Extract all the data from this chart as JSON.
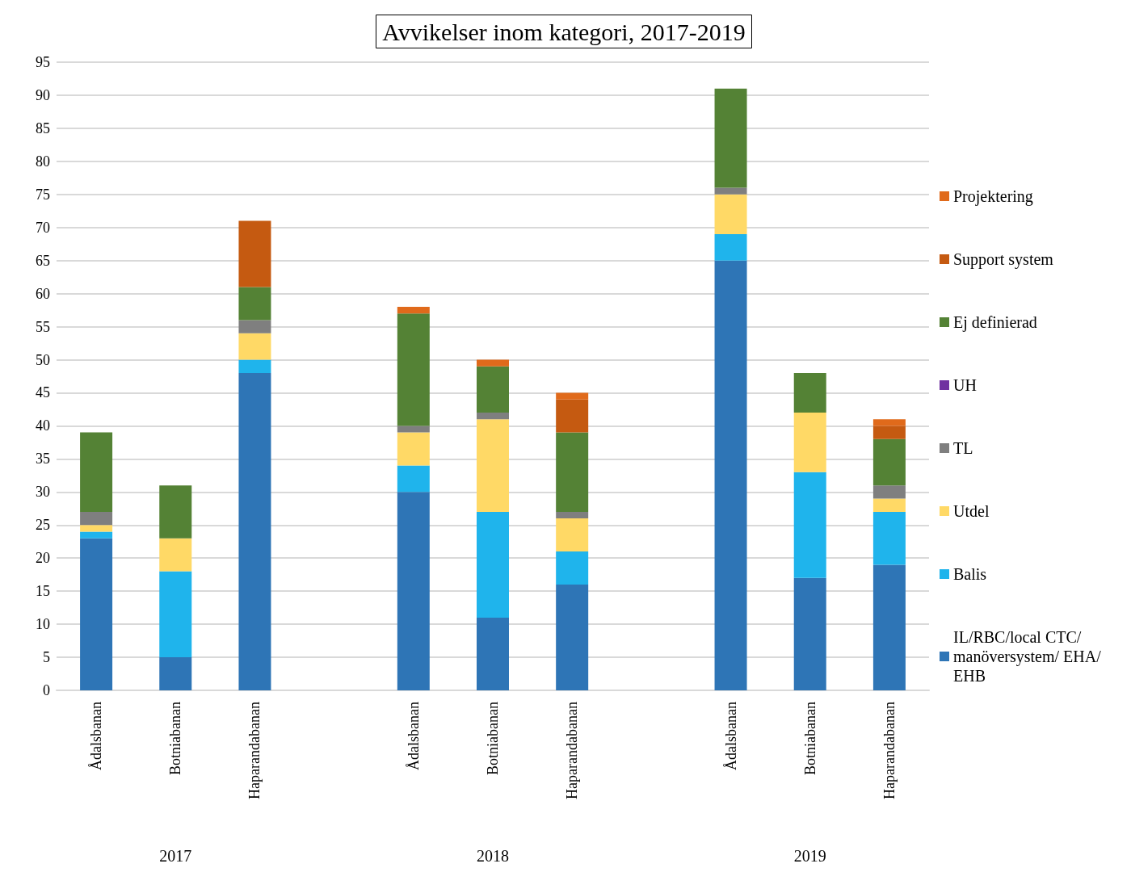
{
  "chart_data": {
    "type": "bar",
    "title": "Avvikelser inom kategori, 2017-2019",
    "stacked": true,
    "grid": "y",
    "legend": "right",
    "categories": [
      "Ådalsbanan",
      "Botniabanan",
      "Haparandabanan",
      null,
      "Ådalsbanan",
      "Botniabanan",
      "Haparandabanan",
      null,
      "Ådalsbanan",
      "Botniabanan",
      "Haparandabanan"
    ],
    "ylim": [
      0,
      95
    ],
    "yticks": [
      0,
      5,
      10,
      15,
      20,
      25,
      30,
      35,
      40,
      45,
      50,
      55,
      60,
      65,
      70,
      75,
      80,
      85,
      90,
      95
    ],
    "annotations": [
      "2017",
      "2018",
      "2019"
    ],
    "series": [
      {
        "name": "IL/RBC/local CTC/manöversystem/ EHA/EHB",
        "color": "#2e75b6",
        "values": [
          23,
          5,
          48,
          null,
          30,
          11,
          16,
          null,
          65,
          17,
          19
        ]
      },
      {
        "name": "Balis",
        "color": "#1fb4ec",
        "values": [
          1,
          13,
          2,
          null,
          4,
          16,
          5,
          null,
          4,
          16,
          8
        ]
      },
      {
        "name": "Utdel",
        "color": "#ffd966",
        "values": [
          1,
          5,
          4,
          null,
          5,
          14,
          5,
          null,
          6,
          9,
          2
        ]
      },
      {
        "name": "TL",
        "color": "#7f7f7f",
        "values": [
          2,
          0,
          2,
          null,
          1,
          1,
          1,
          null,
          1,
          0,
          2
        ]
      },
      {
        "name": "UH",
        "color": "#7030a0",
        "values": [
          0,
          0,
          0,
          null,
          0,
          0,
          0,
          null,
          0,
          0,
          0
        ]
      },
      {
        "name": "Ej definierad",
        "color": "#548235",
        "values": [
          12,
          8,
          5,
          null,
          17,
          7,
          12,
          null,
          15,
          6,
          7
        ]
      },
      {
        "name": "Support system",
        "color": "#c55a11",
        "values": [
          0,
          0,
          10,
          null,
          0,
          0,
          5,
          null,
          0,
          0,
          2
        ]
      },
      {
        "name": "Projektering",
        "color": "#e06a1b",
        "values": [
          0,
          0,
          0,
          null,
          1,
          1,
          1,
          null,
          0,
          0,
          1
        ]
      }
    ]
  }
}
